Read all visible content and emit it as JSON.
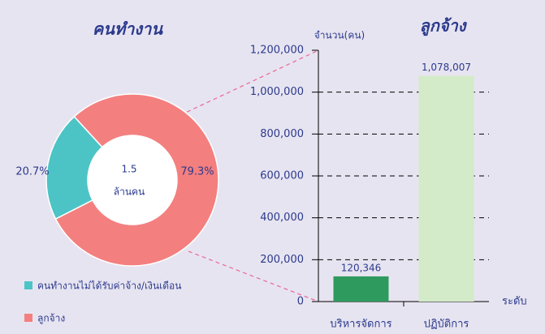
{
  "chart_data": [
    {
      "type": "pie",
      "title": "คนทำงาน",
      "center_label": [
        "1.5",
        "ล้านคน"
      ],
      "categories": [
        "คนทำงานไม่ได้รับค่าจ้าง/เงินเดือน",
        "ลูกจ้าง"
      ],
      "values": [
        20.7,
        79.3
      ],
      "value_labels": [
        "20.7%",
        "79.3%"
      ],
      "colors": [
        "#4cc4c6",
        "#f47f7f"
      ]
    },
    {
      "type": "bar",
      "title": "ลูกจ้าง",
      "ylabel": "จำนวน(คน)",
      "xlabel": "ระดับ",
      "categories": [
        "บริหารจัดการ",
        "ปฏิบัติการ"
      ],
      "values": [
        120346,
        1078007
      ],
      "value_labels": [
        "120,346",
        "1,078,007"
      ],
      "colors": [
        "#2e9a5e",
        "#d3ebc8"
      ],
      "ylim": [
        0,
        1200000
      ],
      "yticks": [
        0,
        {
          "value": 200000,
          "label": "200,000"
        },
        {
          "value": 400000,
          "label": "400,000"
        },
        {
          "value": 600000,
          "label": "600,000"
        },
        {
          "value": 800000,
          "label": "800,000"
        },
        {
          "value": 1000000,
          "label": "1,000,000"
        },
        {
          "value": 1200000,
          "label": "1,200,000"
        }
      ],
      "grid": true
    }
  ]
}
